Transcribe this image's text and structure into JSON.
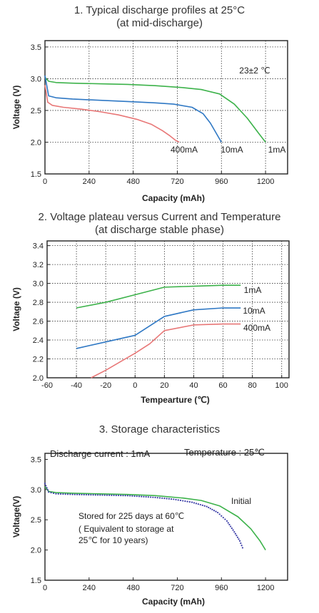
{
  "chart_data": [
    {
      "type": "line",
      "title": "1. Typical discharge profiles at 25°C",
      "subtitle": "(at mid-discharge)",
      "xlabel": "Capacity  (mAh)",
      "ylabel": "Voltage (V)",
      "xlim": [
        0,
        1320
      ],
      "ylim": [
        1.5,
        3.6
      ],
      "xticks": [
        0,
        240,
        480,
        720,
        960,
        1200
      ],
      "xtick_labels": [
        "0",
        "240",
        "480",
        "720",
        "960",
        "1200"
      ],
      "yticks": [
        1.5,
        2.0,
        2.5,
        3.0,
        3.5
      ],
      "ytick_labels": [
        "1.5",
        "2.0",
        "2.5",
        "3.0",
        "3.5"
      ],
      "grid": true,
      "annotations": [
        "23±2 ℃"
      ],
      "series": [
        {
          "name": "1mA",
          "color": "#3cb24a",
          "x": [
            0,
            20,
            60,
            150,
            300,
            450,
            600,
            750,
            850,
            950,
            1030,
            1100,
            1160,
            1200
          ],
          "y": [
            3.02,
            2.96,
            2.94,
            2.93,
            2.92,
            2.91,
            2.89,
            2.86,
            2.83,
            2.76,
            2.6,
            2.38,
            2.15,
            2.0
          ]
        },
        {
          "name": "10mA",
          "color": "#2f78c4",
          "x": [
            0,
            20,
            60,
            150,
            300,
            450,
            600,
            700,
            800,
            860,
            900,
            930,
            960
          ],
          "y": [
            3.05,
            2.73,
            2.7,
            2.68,
            2.66,
            2.64,
            2.62,
            2.6,
            2.55,
            2.45,
            2.3,
            2.15,
            2.0
          ]
        },
        {
          "name": "400mA",
          "color": "#e87777",
          "x": [
            0,
            15,
            40,
            100,
            200,
            300,
            400,
            500,
            580,
            640,
            680,
            710,
            730
          ],
          "y": [
            2.9,
            2.63,
            2.58,
            2.55,
            2.52,
            2.48,
            2.43,
            2.36,
            2.28,
            2.18,
            2.1,
            2.03,
            2.0
          ]
        }
      ],
      "series_labels": [
        "400mA",
        "10mA",
        "1mA"
      ]
    },
    {
      "type": "line",
      "title": "2. Voltage plateau versus Current and Temperature",
      "subtitle": "(at discharge stable phase)",
      "xlabel": "Tempearture  (℃)",
      "ylabel": "Voltage (V)",
      "xlim": [
        -60,
        105
      ],
      "ylim": [
        2.0,
        3.45
      ],
      "xticks": [
        -60,
        -40,
        -20,
        0,
        20,
        40,
        60,
        80,
        100
      ],
      "xtick_labels": [
        "-60",
        "-40",
        "-20",
        "0",
        "20",
        "40",
        "60",
        "80",
        "100"
      ],
      "yticks": [
        2.0,
        2.2,
        2.4,
        2.6,
        2.8,
        3.0,
        3.2,
        3.4
      ],
      "ytick_labels": [
        "2.0",
        "2.2",
        "2.4",
        "2.6",
        "2.8",
        "3.0",
        "3.2",
        "3.4"
      ],
      "grid": true,
      "series": [
        {
          "name": "1mA",
          "color": "#3cb24a",
          "x": [
            -40,
            -20,
            0,
            20,
            40,
            60,
            72
          ],
          "y": [
            2.74,
            2.8,
            2.88,
            2.96,
            2.97,
            2.98,
            2.98
          ]
        },
        {
          "name": "10mA",
          "color": "#2f78c4",
          "x": [
            -40,
            -20,
            0,
            10,
            20,
            40,
            60,
            72
          ],
          "y": [
            2.31,
            2.38,
            2.45,
            2.55,
            2.65,
            2.72,
            2.74,
            2.74
          ]
        },
        {
          "name": "400mA",
          "color": "#e87777",
          "x": [
            -30,
            -20,
            -10,
            0,
            10,
            20,
            40,
            60,
            72
          ],
          "y": [
            2.0,
            2.08,
            2.17,
            2.26,
            2.36,
            2.5,
            2.56,
            2.57,
            2.57
          ]
        }
      ],
      "series_labels": [
        "1mA",
        "10mA",
        "400mA"
      ]
    },
    {
      "type": "line",
      "title": "3. Storage characteristics",
      "xlabel": "Capacity  (mAh)",
      "ylabel": "Voltage(V)",
      "xlim": [
        0,
        1320
      ],
      "ylim": [
        1.5,
        3.6
      ],
      "xticks": [
        0,
        240,
        480,
        720,
        960,
        1200
      ],
      "xtick_labels": [
        "0",
        "240",
        "480",
        "720",
        "960",
        "1200"
      ],
      "yticks": [
        1.5,
        2.0,
        2.5,
        3.0,
        3.5
      ],
      "ytick_labels": [
        "1.5",
        "2.0",
        "2.5",
        "3.0",
        "3.5"
      ],
      "grid": false,
      "annotations": [
        "Discharge current : 1mA",
        "Temperature : 25℃",
        "Stored for 225 days at 60℃",
        "( Equivalent to storage at",
        "25℃ for 10 years)"
      ],
      "series": [
        {
          "name": "Initial",
          "color": "#3cb24a",
          "style": "line",
          "x": [
            0,
            20,
            60,
            150,
            300,
            450,
            600,
            750,
            850,
            950,
            1050,
            1120,
            1170,
            1200
          ],
          "y": [
            3.05,
            2.97,
            2.95,
            2.94,
            2.93,
            2.92,
            2.9,
            2.86,
            2.82,
            2.73,
            2.55,
            2.35,
            2.15,
            2.0
          ]
        },
        {
          "name": "",
          "color": "#3d3fa8",
          "style": "dots",
          "x": [
            0,
            20,
            60,
            150,
            300,
            450,
            600,
            700,
            800,
            880,
            940,
            990,
            1030,
            1060,
            1080
          ],
          "y": [
            3.1,
            2.96,
            2.93,
            2.92,
            2.91,
            2.9,
            2.87,
            2.84,
            2.79,
            2.72,
            2.62,
            2.48,
            2.3,
            2.15,
            2.0
          ]
        }
      ],
      "series_labels": [
        "Initial"
      ]
    }
  ]
}
